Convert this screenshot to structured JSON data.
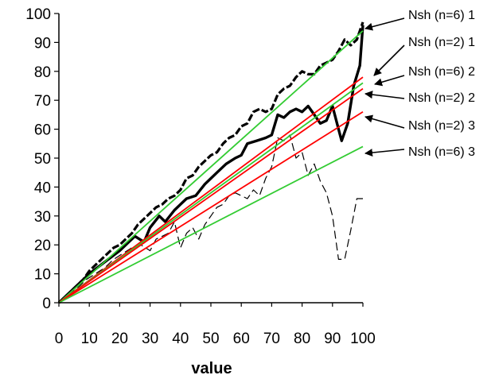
{
  "chart_data": {
    "type": "line",
    "title": "",
    "xlabel": "value",
    "ylabel": "",
    "xlim": [
      0,
      100
    ],
    "ylim": [
      0,
      100
    ],
    "x_ticks": [
      0,
      10,
      20,
      30,
      40,
      50,
      60,
      70,
      80,
      90,
      100
    ],
    "y_ticks": [
      0,
      10,
      20,
      30,
      40,
      50,
      60,
      70,
      80,
      90,
      100
    ],
    "grid": false,
    "legend": "none",
    "series": [
      {
        "style": "thick-dashed",
        "color": "#000000",
        "x": [
          0,
          2,
          4,
          6,
          8,
          10,
          12,
          14,
          16,
          18,
          20,
          22,
          24,
          26,
          28,
          30,
          32,
          34,
          36,
          38,
          40,
          42,
          44,
          46,
          48,
          50,
          52,
          54,
          56,
          58,
          60,
          62,
          64,
          66,
          68,
          70,
          72,
          74,
          76,
          78,
          80,
          82,
          84,
          86,
          88,
          90,
          92,
          94,
          96,
          98,
          100
        ],
        "y": [
          0,
          2,
          4,
          6,
          8,
          11,
          13,
          15,
          17,
          19,
          20,
          22,
          24,
          27,
          29,
          31,
          33,
          34,
          36,
          37,
          39,
          43,
          44,
          47,
          49,
          51,
          52,
          55,
          57,
          58,
          61,
          62,
          66,
          67,
          66,
          67,
          72,
          74,
          75,
          78,
          80,
          79,
          79,
          82,
          83,
          84,
          87,
          91,
          89,
          91,
          97
        ]
      },
      {
        "style": "thick-solid",
        "color": "#000000",
        "x": [
          0,
          5,
          10,
          15,
          20,
          25,
          28,
          30,
          33,
          35,
          38,
          40,
          42,
          45,
          48,
          50,
          52,
          55,
          58,
          60,
          62,
          65,
          68,
          70,
          72,
          74,
          76,
          78,
          80,
          82,
          84,
          86,
          88,
          90,
          92,
          93,
          95,
          97,
          99,
          100
        ],
        "y": [
          0,
          5,
          10,
          14,
          18,
          23,
          21,
          26,
          30,
          28,
          32,
          34,
          36,
          37,
          41,
          43,
          45,
          48,
          50,
          51,
          55,
          56,
          57,
          58,
          65,
          64,
          66,
          67,
          66,
          68,
          65,
          62,
          63,
          68,
          60,
          56,
          62,
          75,
          82,
          96
        ]
      },
      {
        "style": "thin-dashed",
        "color": "#000000",
        "x": [
          0,
          3,
          6,
          9,
          12,
          15,
          18,
          21,
          24,
          27,
          30,
          32,
          34,
          36,
          38,
          40,
          42,
          44,
          46,
          48,
          50,
          52,
          54,
          56,
          58,
          60,
          62,
          64,
          66,
          68,
          70,
          72,
          74,
          76,
          78,
          80,
          82,
          84,
          86,
          88,
          90,
          92,
          94,
          96,
          98,
          100
        ],
        "y": [
          0,
          3,
          5,
          8,
          10,
          12,
          15,
          17,
          19,
          20,
          18,
          22,
          23,
          24,
          28,
          19,
          24,
          26,
          22,
          27,
          30,
          33,
          34,
          37,
          38,
          37,
          36,
          39,
          37,
          43,
          47,
          57,
          56,
          58,
          50,
          52,
          44,
          48,
          42,
          38,
          30,
          15,
          15,
          25,
          36,
          36
        ]
      },
      {
        "style": "thin-solid",
        "color": "#33cc33",
        "x": [
          0,
          100
        ],
        "y": [
          0,
          94
        ]
      },
      {
        "style": "thin-solid",
        "color": "#ff0000",
        "x": [
          0,
          100
        ],
        "y": [
          0,
          78
        ]
      },
      {
        "style": "thin-solid",
        "color": "#33cc33",
        "x": [
          0,
          100
        ],
        "y": [
          0,
          76
        ]
      },
      {
        "style": "thin-solid",
        "color": "#ff0000",
        "x": [
          0,
          100
        ],
        "y": [
          0,
          74
        ]
      },
      {
        "style": "thin-solid",
        "color": "#ff0000",
        "x": [
          0,
          100
        ],
        "y": [
          0,
          66
        ]
      },
      {
        "style": "thin-solid",
        "color": "#33cc33",
        "x": [
          0,
          100
        ],
        "y": [
          0,
          54
        ]
      }
    ],
    "annotations": [
      {
        "text": "Nsh (n=6) 1"
      },
      {
        "text": "Nsh (n=2) 1"
      },
      {
        "text": "Nsh (n=6) 2"
      },
      {
        "text": "Nsh (n=2) 2"
      },
      {
        "text": "Nsh (n=2) 3"
      },
      {
        "text": "Nsh (n=6) 3"
      }
    ]
  }
}
